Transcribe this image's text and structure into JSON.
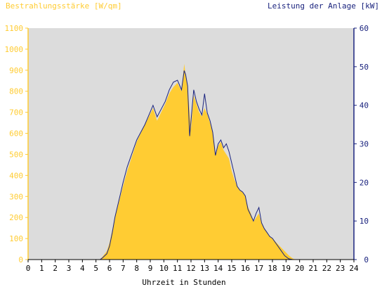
{
  "chart_data": {
    "type": "area",
    "title_left": "Bestrahlungsstärke [W/qm]",
    "title_right": "Leistung der Anlage [kW]",
    "xlabel": "Uhrzeit in Stunden",
    "xlim": [
      0,
      24
    ],
    "ylim_left": [
      0,
      1100
    ],
    "ylim_right": [
      0,
      60
    ],
    "x_ticks": [
      "0",
      "1",
      "2",
      "3",
      "4",
      "5",
      "6",
      "7",
      "8",
      "9",
      "10",
      "11",
      "12",
      "13",
      "14",
      "15",
      "16",
      "17",
      "18",
      "19",
      "20",
      "21",
      "22",
      "23",
      "24"
    ],
    "y_ticks_left": [
      "0",
      "100",
      "200",
      "300",
      "400",
      "500",
      "600",
      "700",
      "800",
      "900",
      "1000",
      "1100"
    ],
    "y_ticks_right": [
      "0",
      "10",
      "20",
      "30",
      "40",
      "50",
      "60"
    ],
    "colors": {
      "plot_background": "#dcdcdc",
      "irradiance_fill": "#ffcc33",
      "power_line": "#1a237e",
      "left_axis": "#ffcc33",
      "right_axis": "#1a237e"
    },
    "series": [
      {
        "axis": "left",
        "style": "area",
        "x": [
          0,
          5.3,
          5.5,
          5.8,
          6.0,
          6.2,
          6.4,
          6.6,
          6.8,
          7.0,
          7.3,
          7.6,
          8.0,
          8.3,
          8.6,
          8.9,
          9.2,
          9.5,
          9.8,
          10.1,
          10.4,
          10.7,
          11.0,
          11.3,
          11.5,
          11.6,
          11.75,
          11.9,
          12.0,
          12.1,
          12.2,
          12.4,
          12.6,
          12.8,
          13.0,
          13.2,
          13.4,
          13.6,
          13.8,
          14.0,
          14.2,
          14.4,
          14.6,
          14.8,
          15.0,
          15.2,
          15.4,
          15.6,
          15.8,
          16.0,
          16.2,
          16.4,
          16.6,
          16.8,
          17.0,
          17.2,
          17.4,
          17.6,
          17.8,
          18.0,
          18.3,
          18.6,
          18.9,
          19.2,
          19.5,
          19.7,
          20.0,
          24
        ],
        "values": [
          0,
          0,
          15,
          40,
          80,
          140,
          200,
          250,
          300,
          350,
          420,
          480,
          560,
          600,
          640,
          680,
          720,
          660,
          700,
          740,
          790,
          820,
          840,
          800,
          930,
          880,
          820,
          700,
          620,
          700,
          780,
          740,
          700,
          680,
          720,
          690,
          650,
          600,
          500,
          540,
          560,
          520,
          500,
          480,
          420,
          380,
          350,
          330,
          320,
          300,
          250,
          220,
          180,
          200,
          220,
          170,
          150,
          130,
          110,
          100,
          80,
          60,
          40,
          20,
          5,
          0,
          0,
          0
        ]
      },
      {
        "axis": "right",
        "style": "line",
        "x": [
          0,
          5.3,
          5.5,
          5.8,
          6.0,
          6.2,
          6.4,
          6.6,
          6.8,
          7.0,
          7.3,
          7.6,
          8.0,
          8.3,
          8.6,
          8.9,
          9.2,
          9.5,
          9.8,
          10.1,
          10.4,
          10.7,
          11.0,
          11.3,
          11.5,
          11.6,
          11.75,
          11.9,
          12.0,
          12.1,
          12.2,
          12.4,
          12.6,
          12.8,
          13.0,
          13.2,
          13.4,
          13.6,
          13.8,
          14.0,
          14.2,
          14.4,
          14.6,
          14.8,
          15.0,
          15.2,
          15.4,
          15.6,
          15.8,
          16.0,
          16.2,
          16.4,
          16.6,
          16.8,
          17.0,
          17.2,
          17.4,
          17.6,
          17.8,
          18.0,
          18.3,
          18.6,
          18.9,
          19.2,
          19.5,
          19.7,
          20.0,
          24
        ],
        "values": [
          0,
          0,
          0.5,
          1.5,
          3.5,
          7,
          11,
          14,
          17,
          20,
          24,
          27,
          31,
          33,
          35,
          37.5,
          40,
          37,
          39,
          41,
          44,
          46,
          46.5,
          44,
          49,
          48,
          45,
          32,
          36,
          40,
          44,
          41,
          39,
          37.5,
          43,
          38,
          36,
          33,
          27,
          30,
          31,
          29,
          30,
          28,
          25,
          22,
          19,
          18,
          17.5,
          16.5,
          13,
          11.5,
          10,
          12,
          13.5,
          9.5,
          8,
          7,
          6,
          5.5,
          4,
          2.5,
          1,
          0.2,
          0,
          0,
          0,
          0
        ]
      }
    ]
  }
}
